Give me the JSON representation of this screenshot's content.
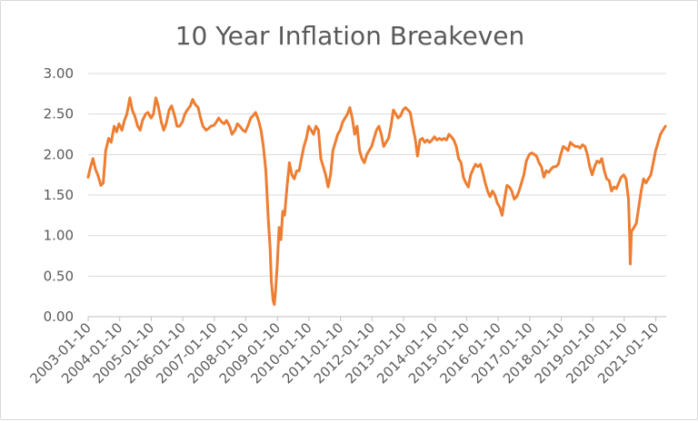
{
  "chart_data": {
    "type": "line",
    "title": "10 Year Inflation Breakeven",
    "xlabel": "",
    "ylabel": "",
    "ylim": [
      0,
      3
    ],
    "y_ticks": [
      "0.00",
      "0.50",
      "1.00",
      "1.50",
      "2.00",
      "2.50",
      "3.00"
    ],
    "x_ticks": [
      "2003-01-10",
      "2004-01-10",
      "2005-01-10",
      "2006-01-10",
      "2007-01-10",
      "2008-01-10",
      "2009-01-10",
      "2010-01-10",
      "2011-01-10",
      "2012-01-10",
      "2013-01-10",
      "2014-01-10",
      "2015-01-10",
      "2016-01-10",
      "2017-01-10",
      "2018-01-10",
      "2019-01-10",
      "2020-01-10",
      "2021-01-10"
    ],
    "grid": "horizontal",
    "legend": "none",
    "series": [
      {
        "color": "#ED7D31",
        "points": [
          [
            "2003-01-10",
            1.72
          ],
          [
            "2003-02-07",
            1.85
          ],
          [
            "2003-03-07",
            1.95
          ],
          [
            "2003-04-04",
            1.82
          ],
          [
            "2003-05-02",
            1.75
          ],
          [
            "2003-06-06",
            1.62
          ],
          [
            "2003-07-04",
            1.65
          ],
          [
            "2003-08-01",
            2.05
          ],
          [
            "2003-09-05",
            2.2
          ],
          [
            "2003-10-03",
            2.15
          ],
          [
            "2003-11-07",
            2.35
          ],
          [
            "2003-12-05",
            2.28
          ],
          [
            "2004-01-02",
            2.38
          ],
          [
            "2004-02-06",
            2.3
          ],
          [
            "2004-03-05",
            2.42
          ],
          [
            "2004-04-02",
            2.5
          ],
          [
            "2004-05-07",
            2.7
          ],
          [
            "2004-06-04",
            2.55
          ],
          [
            "2004-07-02",
            2.48
          ],
          [
            "2004-08-06",
            2.35
          ],
          [
            "2004-09-03",
            2.3
          ],
          [
            "2004-10-01",
            2.42
          ],
          [
            "2004-11-05",
            2.5
          ],
          [
            "2004-12-03",
            2.52
          ],
          [
            "2005-01-07",
            2.45
          ],
          [
            "2005-02-04",
            2.5
          ],
          [
            "2005-03-04",
            2.7
          ],
          [
            "2005-04-01",
            2.6
          ],
          [
            "2005-05-06",
            2.4
          ],
          [
            "2005-06-03",
            2.3
          ],
          [
            "2005-07-01",
            2.38
          ],
          [
            "2005-08-05",
            2.55
          ],
          [
            "2005-09-02",
            2.6
          ],
          [
            "2005-10-07",
            2.48
          ],
          [
            "2005-11-04",
            2.35
          ],
          [
            "2005-12-02",
            2.35
          ],
          [
            "2006-01-06",
            2.4
          ],
          [
            "2006-02-03",
            2.5
          ],
          [
            "2006-03-03",
            2.55
          ],
          [
            "2006-04-07",
            2.6
          ],
          [
            "2006-05-05",
            2.68
          ],
          [
            "2006-06-02",
            2.62
          ],
          [
            "2006-07-07",
            2.58
          ],
          [
            "2006-08-04",
            2.45
          ],
          [
            "2006-09-01",
            2.35
          ],
          [
            "2006-10-06",
            2.3
          ],
          [
            "2006-11-03",
            2.32
          ],
          [
            "2006-12-01",
            2.35
          ],
          [
            "2007-01-05",
            2.36
          ],
          [
            "2007-02-02",
            2.4
          ],
          [
            "2007-03-02",
            2.45
          ],
          [
            "2007-04-06",
            2.4
          ],
          [
            "2007-05-04",
            2.38
          ],
          [
            "2007-06-01",
            2.42
          ],
          [
            "2007-07-06",
            2.35
          ],
          [
            "2007-08-03",
            2.25
          ],
          [
            "2007-09-07",
            2.3
          ],
          [
            "2007-10-05",
            2.38
          ],
          [
            "2007-11-02",
            2.35
          ],
          [
            "2007-12-07",
            2.3
          ],
          [
            "2008-01-04",
            2.28
          ],
          [
            "2008-02-01",
            2.35
          ],
          [
            "2008-03-07",
            2.45
          ],
          [
            "2008-04-04",
            2.48
          ],
          [
            "2008-05-02",
            2.52
          ],
          [
            "2008-06-06",
            2.42
          ],
          [
            "2008-07-04",
            2.3
          ],
          [
            "2008-08-01",
            2.1
          ],
          [
            "2008-08-29",
            1.8
          ],
          [
            "2008-09-26",
            1.2
          ],
          [
            "2008-10-17",
            0.85
          ],
          [
            "2008-10-31",
            0.45
          ],
          [
            "2008-11-21",
            0.2
          ],
          [
            "2008-12-05",
            0.15
          ],
          [
            "2008-12-19",
            0.3
          ],
          [
            "2009-01-09",
            0.65
          ],
          [
            "2009-01-30",
            1.1
          ],
          [
            "2009-02-20",
            0.95
          ],
          [
            "2009-03-13",
            1.3
          ],
          [
            "2009-04-03",
            1.25
          ],
          [
            "2009-05-01",
            1.6
          ],
          [
            "2009-05-29",
            1.9
          ],
          [
            "2009-06-26",
            1.75
          ],
          [
            "2009-07-24",
            1.7
          ],
          [
            "2009-08-21",
            1.8
          ],
          [
            "2009-09-18",
            1.8
          ],
          [
            "2009-10-16",
            1.95
          ],
          [
            "2009-11-13",
            2.1
          ],
          [
            "2009-12-11",
            2.2
          ],
          [
            "2010-01-08",
            2.35
          ],
          [
            "2010-02-05",
            2.3
          ],
          [
            "2010-03-05",
            2.25
          ],
          [
            "2010-04-02",
            2.35
          ],
          [
            "2010-04-30",
            2.3
          ],
          [
            "2010-05-28",
            1.95
          ],
          [
            "2010-06-25",
            1.85
          ],
          [
            "2010-07-23",
            1.75
          ],
          [
            "2010-08-20",
            1.6
          ],
          [
            "2010-09-17",
            1.75
          ],
          [
            "2010-10-15",
            2.05
          ],
          [
            "2010-11-12",
            2.15
          ],
          [
            "2010-12-10",
            2.25
          ],
          [
            "2011-01-07",
            2.3
          ],
          [
            "2011-02-04",
            2.4
          ],
          [
            "2011-03-04",
            2.45
          ],
          [
            "2011-04-01",
            2.5
          ],
          [
            "2011-04-29",
            2.58
          ],
          [
            "2011-05-27",
            2.45
          ],
          [
            "2011-06-24",
            2.25
          ],
          [
            "2011-07-22",
            2.35
          ],
          [
            "2011-08-19",
            2.05
          ],
          [
            "2011-09-16",
            1.95
          ],
          [
            "2011-10-14",
            1.9
          ],
          [
            "2011-11-11",
            2.0
          ],
          [
            "2011-12-09",
            2.05
          ],
          [
            "2012-01-06",
            2.1
          ],
          [
            "2012-02-03",
            2.2
          ],
          [
            "2012-03-02",
            2.3
          ],
          [
            "2012-03-30",
            2.35
          ],
          [
            "2012-04-27",
            2.25
          ],
          [
            "2012-05-25",
            2.1
          ],
          [
            "2012-06-22",
            2.15
          ],
          [
            "2012-07-20",
            2.2
          ],
          [
            "2012-08-17",
            2.35
          ],
          [
            "2012-09-14",
            2.55
          ],
          [
            "2012-10-12",
            2.5
          ],
          [
            "2012-11-09",
            2.45
          ],
          [
            "2012-12-07",
            2.48
          ],
          [
            "2013-01-04",
            2.55
          ],
          [
            "2013-02-01",
            2.58
          ],
          [
            "2013-03-01",
            2.55
          ],
          [
            "2013-03-29",
            2.52
          ],
          [
            "2013-04-26",
            2.35
          ],
          [
            "2013-05-24",
            2.2
          ],
          [
            "2013-06-21",
            1.98
          ],
          [
            "2013-07-19",
            2.18
          ],
          [
            "2013-08-16",
            2.2
          ],
          [
            "2013-09-13",
            2.15
          ],
          [
            "2013-10-11",
            2.18
          ],
          [
            "2013-11-08",
            2.15
          ],
          [
            "2013-12-06",
            2.18
          ],
          [
            "2014-01-03",
            2.22
          ],
          [
            "2014-01-31",
            2.18
          ],
          [
            "2014-02-28",
            2.2
          ],
          [
            "2014-03-28",
            2.18
          ],
          [
            "2014-04-25",
            2.2
          ],
          [
            "2014-05-23",
            2.18
          ],
          [
            "2014-06-20",
            2.25
          ],
          [
            "2014-07-18",
            2.22
          ],
          [
            "2014-08-15",
            2.18
          ],
          [
            "2014-09-12",
            2.1
          ],
          [
            "2014-10-10",
            1.95
          ],
          [
            "2014-11-07",
            1.9
          ],
          [
            "2014-12-05",
            1.72
          ],
          [
            "2015-01-02",
            1.65
          ],
          [
            "2015-01-30",
            1.6
          ],
          [
            "2015-02-27",
            1.75
          ],
          [
            "2015-03-27",
            1.82
          ],
          [
            "2015-04-24",
            1.88
          ],
          [
            "2015-05-22",
            1.85
          ],
          [
            "2015-06-19",
            1.88
          ],
          [
            "2015-07-17",
            1.78
          ],
          [
            "2015-08-14",
            1.65
          ],
          [
            "2015-09-11",
            1.55
          ],
          [
            "2015-10-09",
            1.48
          ],
          [
            "2015-11-06",
            1.55
          ],
          [
            "2015-12-04",
            1.5
          ],
          [
            "2016-01-01",
            1.4
          ],
          [
            "2016-01-29",
            1.35
          ],
          [
            "2016-02-26",
            1.25
          ],
          [
            "2016-03-25",
            1.45
          ],
          [
            "2016-04-22",
            1.62
          ],
          [
            "2016-05-20",
            1.6
          ],
          [
            "2016-06-17",
            1.55
          ],
          [
            "2016-07-15",
            1.45
          ],
          [
            "2016-08-12",
            1.48
          ],
          [
            "2016-09-09",
            1.55
          ],
          [
            "2016-10-07",
            1.65
          ],
          [
            "2016-11-04",
            1.75
          ],
          [
            "2016-12-02",
            1.92
          ],
          [
            "2017-01-06",
            2.0
          ],
          [
            "2017-02-03",
            2.02
          ],
          [
            "2017-03-03",
            2.0
          ],
          [
            "2017-03-31",
            1.98
          ],
          [
            "2017-04-28",
            1.9
          ],
          [
            "2017-05-26",
            1.85
          ],
          [
            "2017-06-23",
            1.72
          ],
          [
            "2017-07-21",
            1.8
          ],
          [
            "2017-08-18",
            1.78
          ],
          [
            "2017-09-15",
            1.82
          ],
          [
            "2017-10-13",
            1.85
          ],
          [
            "2017-11-10",
            1.85
          ],
          [
            "2017-12-08",
            1.88
          ],
          [
            "2018-01-05",
            2.0
          ],
          [
            "2018-02-02",
            2.1
          ],
          [
            "2018-03-02",
            2.08
          ],
          [
            "2018-03-30",
            2.05
          ],
          [
            "2018-04-27",
            2.15
          ],
          [
            "2018-05-25",
            2.12
          ],
          [
            "2018-06-22",
            2.1
          ],
          [
            "2018-07-20",
            2.1
          ],
          [
            "2018-08-17",
            2.08
          ],
          [
            "2018-09-14",
            2.12
          ],
          [
            "2018-10-12",
            2.1
          ],
          [
            "2018-11-09",
            2.0
          ],
          [
            "2018-12-07",
            1.85
          ],
          [
            "2019-01-04",
            1.75
          ],
          [
            "2019-02-01",
            1.85
          ],
          [
            "2019-03-01",
            1.92
          ],
          [
            "2019-03-29",
            1.9
          ],
          [
            "2019-04-26",
            1.95
          ],
          [
            "2019-05-24",
            1.8
          ],
          [
            "2019-06-21",
            1.7
          ],
          [
            "2019-07-19",
            1.68
          ],
          [
            "2019-08-16",
            1.55
          ],
          [
            "2019-09-13",
            1.6
          ],
          [
            "2019-10-11",
            1.58
          ],
          [
            "2019-11-08",
            1.65
          ],
          [
            "2019-12-06",
            1.72
          ],
          [
            "2020-01-03",
            1.75
          ],
          [
            "2020-01-31",
            1.7
          ],
          [
            "2020-02-28",
            1.45
          ],
          [
            "2020-03-13",
            1.0
          ],
          [
            "2020-03-20",
            0.65
          ],
          [
            "2020-04-03",
            1.05
          ],
          [
            "2020-05-01",
            1.1
          ],
          [
            "2020-05-29",
            1.15
          ],
          [
            "2020-06-26",
            1.35
          ],
          [
            "2020-07-24",
            1.55
          ],
          [
            "2020-08-21",
            1.7
          ],
          [
            "2020-09-18",
            1.65
          ],
          [
            "2020-10-16",
            1.7
          ],
          [
            "2020-11-13",
            1.75
          ],
          [
            "2020-12-11",
            1.9
          ],
          [
            "2021-01-08",
            2.05
          ],
          [
            "2021-02-05",
            2.15
          ],
          [
            "2021-03-05",
            2.25
          ],
          [
            "2021-04-02",
            2.3
          ],
          [
            "2021-04-30",
            2.35
          ]
        ]
      }
    ]
  }
}
